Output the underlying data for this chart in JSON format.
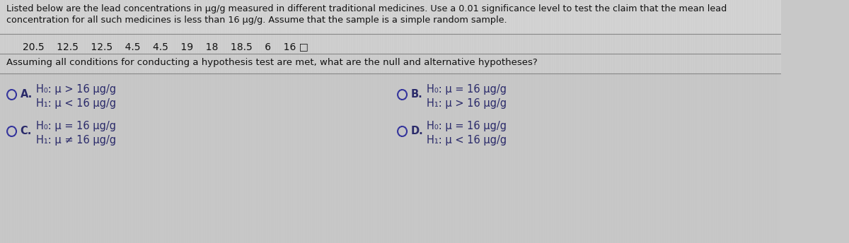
{
  "bg_color": "#c8c8c8",
  "panel_color": "#d8d8d8",
  "intro_text_line1": "Listed below are the lead concentrations in μg/g measured in different traditional medicines. Use a 0.01 significance level to test the claim that the mean lead",
  "intro_text_line2": "concentration for all such medicines is less than 16 μg/g. Assume that the sample is a simple random sample.",
  "data_values": "20.5    12.5    12.5    4.5    4.5    19    18    18.5    6    16 □",
  "question_text": "Assuming all conditions for conducting a hypothesis test are met, what are the null and alternative hypotheses?",
  "options": {
    "A": {
      "label": "A.",
      "h0": "H₀: μ > 16 μg/g",
      "h1": "H₁: μ < 16 μg/g"
    },
    "B": {
      "label": "B.",
      "h0": "H₀: μ = 16 μg/g",
      "h1": "H₁: μ > 16 μg/g"
    },
    "C": {
      "label": "C.",
      "h0": "H₀: μ = 16 μg/g",
      "h1": "H₁: μ ≠ 16 μg/g"
    },
    "D": {
      "label": "D.",
      "h0": "H₀: μ = 16 μg/g",
      "h1": "H₁: μ < 16 μg/g"
    }
  },
  "text_color": "#2a2a6a",
  "intro_color": "#111111",
  "circle_color": "#2a2a9a",
  "line_color": "#888888",
  "font_size_intro": 9.2,
  "font_size_data": 10.0,
  "font_size_question": 9.5,
  "font_size_options": 10.5,
  "fig_width": 12.0,
  "fig_height": 3.44,
  "dpi": 100
}
